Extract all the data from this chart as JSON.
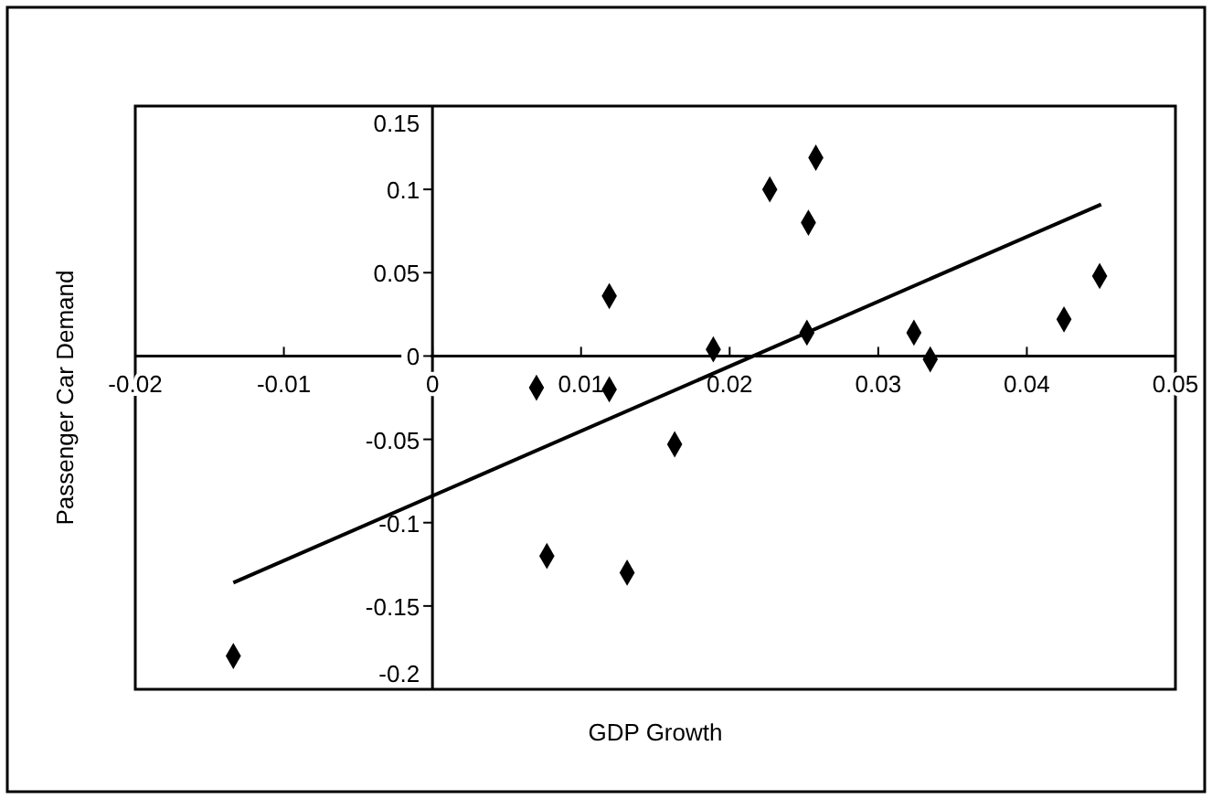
{
  "chart_data": {
    "type": "scatter",
    "xlabel": "GDP Growth",
    "ylabel": "Passenger Car Demand",
    "xlim": [
      -0.02,
      0.05
    ],
    "ylim": [
      -0.2,
      0.15
    ],
    "xticks": [
      -0.02,
      -0.01,
      0,
      0.01,
      0.02,
      0.03,
      0.04,
      0.05
    ],
    "yticks": [
      -0.2,
      -0.15,
      -0.1,
      -0.05,
      0,
      0.05,
      0.1,
      0.15
    ],
    "grid": false,
    "series": [
      {
        "color": "#000000",
        "marker": "diamond",
        "x": [
          -0.0134,
          0.007,
          0.0119,
          0.0119,
          0.0163,
          0.0077,
          0.0131,
          0.0189,
          0.0227,
          0.0258,
          0.0253,
          0.0252,
          0.0324,
          0.0335,
          0.0425,
          0.0449
        ],
        "values": [
          -0.18,
          -0.019,
          0.036,
          -0.02,
          -0.053,
          -0.12,
          -0.13,
          0.004,
          0.1,
          0.119,
          0.08,
          0.014,
          0.014,
          -0.002,
          0.022,
          0.048
        ]
      },
      {
        "type": "line",
        "color": "#000000",
        "marker": "none",
        "line_style": "solid",
        "x": [
          -0.0134,
          0.045
        ],
        "values": [
          -0.136,
          0.091
        ]
      }
    ]
  }
}
